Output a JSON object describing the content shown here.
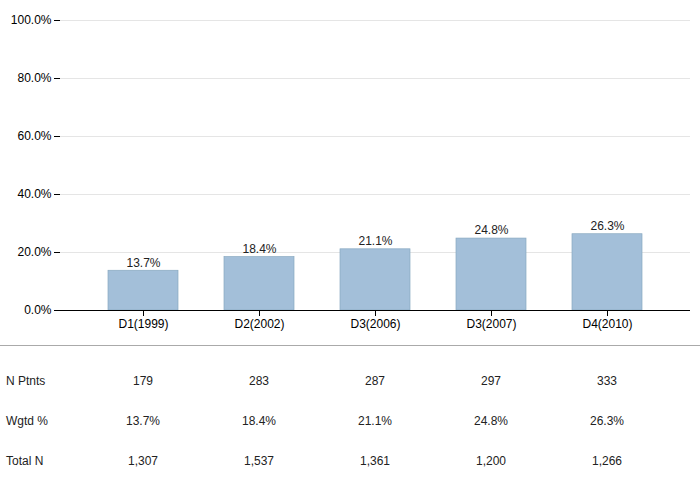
{
  "chart_data": {
    "type": "bar",
    "categories": [
      "D1(1999)",
      "D2(2002)",
      "D3(2006)",
      "D3(2007)",
      "D4(2010)"
    ],
    "values": [
      13.7,
      18.4,
      21.1,
      24.8,
      26.3
    ],
    "value_labels": [
      "13.7%",
      "18.4%",
      "21.1%",
      "24.8%",
      "26.3%"
    ],
    "data_labels": true,
    "color": "#a3bfd9",
    "ylim": [
      0,
      100
    ],
    "yticks": [
      {
        "value": 0,
        "label": "0.0%"
      },
      {
        "value": 20,
        "label": "20.0%"
      },
      {
        "value": 40,
        "label": "40.0%"
      },
      {
        "value": 60,
        "label": "60.0%"
      },
      {
        "value": 80,
        "label": "80.0%"
      },
      {
        "value": 100,
        "label": "100.0%"
      }
    ],
    "grid": true,
    "table": [
      {
        "label": "N Ptnts",
        "values": [
          179,
          283,
          287,
          297,
          333
        ]
      },
      {
        "label": "Wgtd %",
        "values": [
          13.7,
          18.4,
          21.1,
          24.8,
          26.3
        ],
        "value_labels": [
          "13.7%",
          "18.4%",
          "21.1%",
          "24.8%",
          "26.3%"
        ]
      },
      {
        "label": "Total N",
        "values": [
          1307,
          1537,
          1361,
          1200,
          1266
        ],
        "value_labels": [
          "1,307",
          "1,537",
          "1,361",
          "1,200",
          "1,266"
        ]
      }
    ]
  }
}
